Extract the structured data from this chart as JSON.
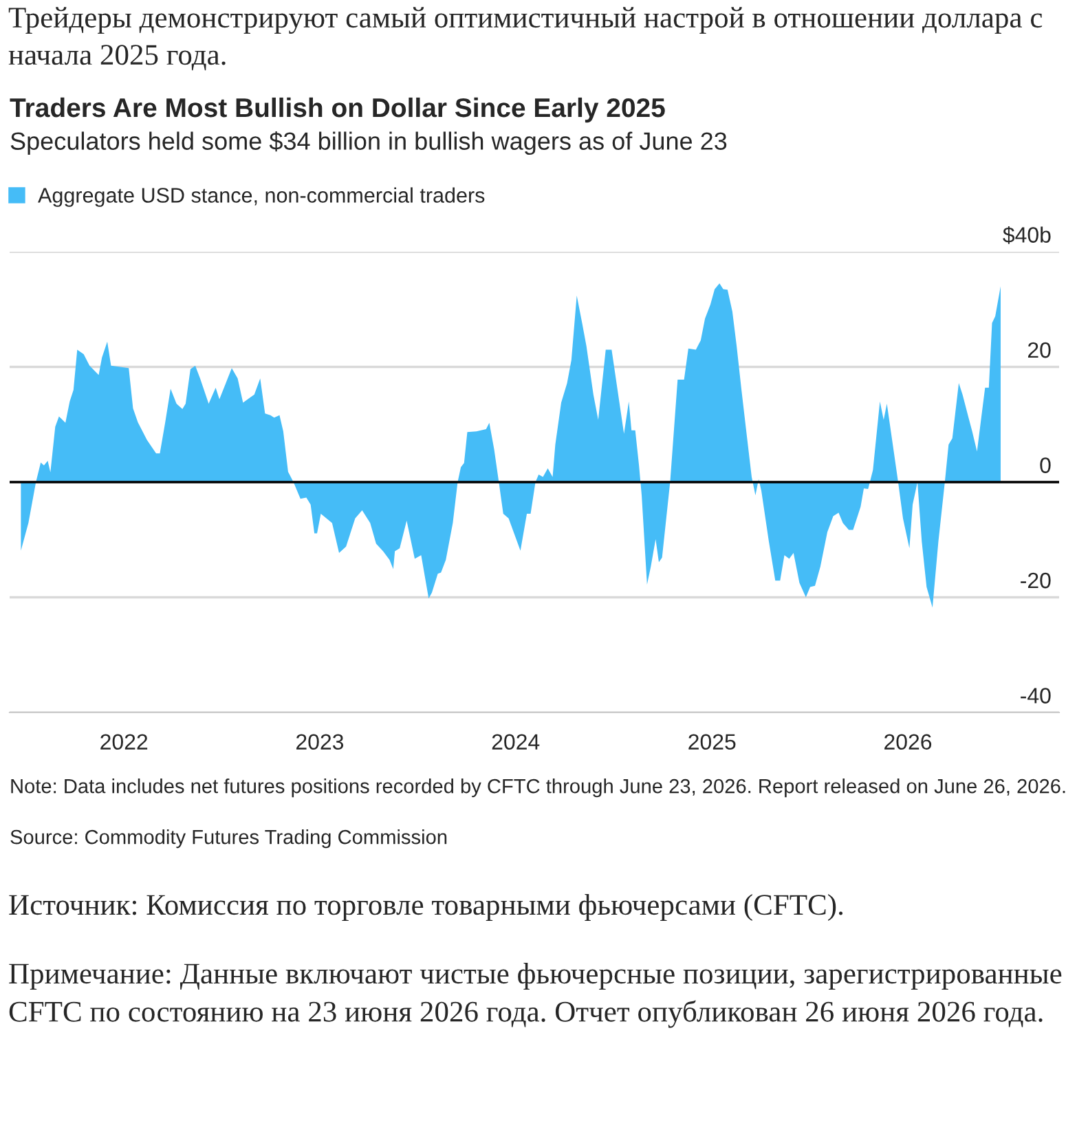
{
  "chart_data": {
    "type": "area",
    "title": "Traders Are Most Bullish on Dollar Since Early 2025",
    "subtitle": "Speculators held some $34 billion in bullish wagers as of June 23",
    "annotations": [
      "Трейдеры демонстрируют самый оптимистичный настрой в отношении доллара с начала 2025 года.",
      "Note: Data includes net futures positions recorded by CFTC through June 23, 2026. Report released on June 26, 2026.",
      "Source: Commodity Futures Trading Commission",
      "Источник: Комиссия по торговле товарными фьючерсами (CFTC).",
      "Примечание: Данные включают чистые фьючерсные позиции, зарегистрированные CFTC по состоянию на 23 июня 2026 года. Отчет опубликован 26 июня 2026 года."
    ],
    "x": [
      "2021-06-23",
      "2021-07-07",
      "2021-07-21",
      "2021-07-30",
      "2021-08-05",
      "2021-08-12",
      "2021-08-17",
      "2021-08-26",
      "2021-09-02",
      "2021-09-14",
      "2021-09-22",
      "2021-09-29",
      "2021-10-06",
      "2021-10-18",
      "2021-10-29",
      "2021-11-15",
      "2021-11-21",
      "2021-12-01",
      "2021-12-08",
      "2021-12-25",
      "2022-01-10",
      "2022-01-18",
      "2022-01-27",
      "2022-02-13",
      "2022-03-02",
      "2022-03-09",
      "2022-03-19",
      "2022-03-29",
      "2022-04-09",
      "2022-04-20",
      "2022-04-26",
      "2022-05-05",
      "2022-05-14",
      "2022-05-23",
      "2022-06-08",
      "2022-06-21",
      "2022-06-28",
      "2022-07-10",
      "2022-07-21",
      "2022-08-01",
      "2022-08-11",
      "2022-08-26",
      "2022-09-01",
      "2022-09-12",
      "2022-09-21",
      "2022-10-01",
      "2022-10-08",
      "2022-10-18",
      "2022-10-25",
      "2022-11-03",
      "2022-11-13",
      "2022-11-26",
      "2022-12-07",
      "2022-12-15",
      "2022-12-22",
      "2022-12-27",
      "2023-01-03",
      "2023-01-24",
      "2023-02-06",
      "2023-02-19",
      "2023-03-08",
      "2023-03-21",
      "2023-04-05",
      "2023-04-16",
      "2023-04-29",
      "2023-05-11",
      "2023-05-18",
      "2023-05-21",
      "2023-05-30",
      "2023-06-12",
      "2023-06-27",
      "2023-07-09",
      "2023-07-23",
      "2023-07-29",
      "2023-08-09",
      "2023-08-15",
      "2023-08-24",
      "2023-09-06",
      "2023-09-15",
      "2023-09-21",
      "2023-09-27",
      "2023-10-03",
      "2023-10-20",
      "2023-11-07",
      "2023-11-13",
      "2023-11-22",
      "2023-11-30",
      "2023-12-09",
      "2023-12-19",
      "2023-12-30",
      "2024-01-10",
      "2024-01-22",
      "2024-01-29",
      "2024-02-07",
      "2024-02-13",
      "2024-02-21",
      "2024-03-01",
      "2024-03-10",
      "2024-03-15",
      "2024-03-26",
      "2024-04-06",
      "2024-04-14",
      "2024-04-24",
      "2024-05-04",
      "2024-05-12",
      "2024-05-25",
      "2024-06-03",
      "2024-06-17",
      "2024-06-28",
      "2024-07-09",
      "2024-07-21",
      "2024-07-30",
      "2024-08-04",
      "2024-08-11",
      "2024-08-18",
      "2024-08-23",
      "2024-09-02",
      "2024-09-09",
      "2024-09-18",
      "2024-09-24",
      "2024-09-30",
      "2024-10-15",
      "2024-10-29",
      "2024-11-10",
      "2024-11-18",
      "2024-12-02",
      "2024-12-11",
      "2024-12-19",
      "2024-12-29",
      "2025-01-06",
      "2025-01-15",
      "2025-01-22",
      "2025-01-30",
      "2025-02-08",
      "2025-02-16",
      "2025-02-25",
      "2025-03-07",
      "2025-03-16",
      "2025-03-23",
      "2025-03-29",
      "2025-04-03",
      "2025-04-17",
      "2025-04-29",
      "2025-05-08",
      "2025-05-16",
      "2025-05-25",
      "2025-06-02",
      "2025-06-13",
      "2025-06-25",
      "2025-07-03",
      "2025-07-12",
      "2025-07-22",
      "2025-08-04",
      "2025-08-15",
      "2025-08-25",
      "2025-09-02",
      "2025-09-13",
      "2025-09-21",
      "2025-10-05",
      "2025-10-11",
      "2025-10-19",
      "2025-10-28",
      "2025-11-10",
      "2025-11-17",
      "2025-11-23",
      "2025-12-04",
      "2025-12-14",
      "2025-12-23",
      "2026-01-04",
      "2026-01-10",
      "2026-01-19",
      "2026-01-27",
      "2026-02-05",
      "2026-02-16",
      "2026-02-27",
      "2026-03-11",
      "2026-03-18",
      "2026-03-25",
      "2026-04-06",
      "2026-04-13",
      "2026-04-23",
      "2026-05-01",
      "2026-05-10",
      "2026-05-17",
      "2026-05-25",
      "2026-06-01",
      "2026-06-07",
      "2026-06-13",
      "2026-06-23"
    ],
    "series": [
      {
        "name": "Aggregate USD stance, non-commercial traders",
        "color": "#45bcf7",
        "values": [
          -11.9,
          -7.1,
          0,
          3.4,
          2.9,
          3.7,
          1.7,
          9.6,
          11.4,
          10.3,
          14.0,
          16.0,
          23.0,
          22.2,
          20.2,
          18.6,
          21.6,
          24.4,
          20.2,
          20.0,
          19.8,
          12.8,
          10.4,
          7.3,
          5.0,
          5.0,
          10.4,
          16.2,
          13.6,
          12.7,
          13.6,
          19.6,
          20.2,
          18.0,
          13.6,
          16.4,
          14.4,
          17.2,
          19.8,
          18.0,
          13.8,
          14.8,
          15.2,
          18.0,
          11.9,
          11.6,
          11.2,
          11.6,
          8.8,
          1.8,
          0,
          -2.9,
          -2.7,
          -3.9,
          -8.9,
          -8.9,
          -5.5,
          -7.1,
          -12.3,
          -11.2,
          -6.3,
          -4.9,
          -7.1,
          -10.7,
          -12.0,
          -13.5,
          -15.1,
          -12.0,
          -11.5,
          -6.7,
          -13.3,
          -12.7,
          -20.2,
          -19.2,
          -15.9,
          -15.7,
          -13.5,
          -7.1,
          0,
          2.6,
          3.3,
          8.7,
          8.8,
          9.2,
          10.3,
          5.7,
          0.5,
          -5.5,
          -6.3,
          -9.1,
          -11.9,
          -5.5,
          -5.5,
          0,
          1.3,
          0.9,
          2.4,
          0.9,
          6.5,
          13.8,
          17.2,
          21.2,
          32.4,
          27.6,
          23.6,
          15.2,
          10.8,
          23.0,
          23.0,
          16.0,
          8.4,
          14.0,
          9.0,
          9.0,
          2.9,
          -2.3,
          -17.8,
          -14.7,
          -9.9,
          -13.9,
          -13.1,
          0,
          17.8,
          17.8,
          23.2,
          23.0,
          24.6,
          28.4,
          30.8,
          33.5,
          34.5,
          33.5,
          33.4,
          29.6,
          23.6,
          16.0,
          8.0,
          0.9,
          -2.3,
          0.5,
          -1.5,
          -10.3,
          -17.1,
          -17.1,
          -12.7,
          -13.3,
          -12.3,
          -17.5,
          -20.0,
          -18.2,
          -18.0,
          -14.7,
          -8.7,
          -5.9,
          -5.3,
          -7.1,
          -8.3,
          -8.3,
          -4.3,
          -1.1,
          -1.2,
          2.1,
          14.0,
          10.8,
          13.6,
          6.5,
          0,
          -6.3,
          -11.5,
          -3.9,
          0,
          -10.3,
          -18.2,
          -21.8,
          -10.3,
          0,
          6.5,
          7.6,
          17.2,
          15.2,
          11.6,
          8.8,
          5.3,
          10.5,
          16.4,
          16.4,
          27.6,
          28.8,
          34.0
        ]
      }
    ],
    "xlim": [
      "2021-06-02",
      "2026-10-10"
    ],
    "xticks": [
      {
        "value": "2022",
        "label": "2022"
      },
      {
        "value": "2023",
        "label": "2023"
      },
      {
        "value": "2024",
        "label": "2024"
      },
      {
        "value": "2025",
        "label": "2025"
      },
      {
        "value": "2026",
        "label": "2026"
      }
    ],
    "ylim": [
      -40,
      40
    ],
    "yticks": [
      {
        "value": 40,
        "label": "$40b"
      },
      20,
      0,
      -20,
      -40
    ],
    "ref_lines": [
      {
        "axis": "y",
        "value": 0,
        "color": "#000000"
      }
    ],
    "grid": "y",
    "legend": "top left"
  }
}
